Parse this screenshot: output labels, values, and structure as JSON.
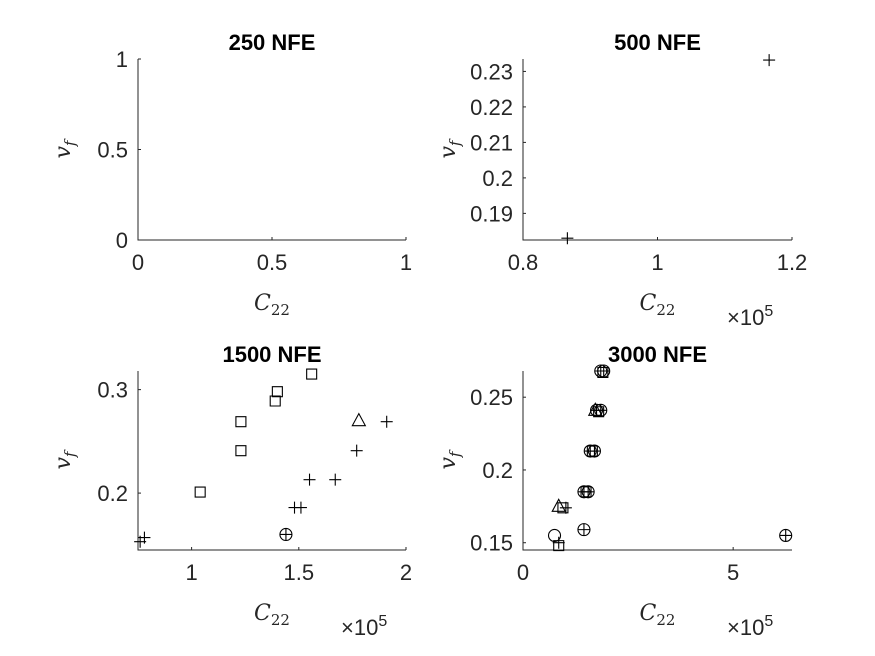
{
  "chart_data": [
    {
      "type": "scatter",
      "title": "250 NFE",
      "xlabel": "C22",
      "ylabel": "vf",
      "xlim": [
        0,
        1
      ],
      "ylim": [
        0,
        1
      ],
      "xticks": [
        "0",
        "0.5",
        "1"
      ],
      "yticks": [
        "0",
        "0.5",
        "1"
      ],
      "x_multiplier": "",
      "series": [
        {
          "marker": "plus",
          "points": []
        }
      ]
    },
    {
      "type": "scatter",
      "title": "500 NFE",
      "xlabel": "C22",
      "ylabel": "vf",
      "xlim": [
        0.8,
        1.2
      ],
      "ylim": [
        0.1825,
        0.2335
      ],
      "xticks": [
        "0.8",
        "1",
        "1.2"
      ],
      "yticks": [
        "0.19",
        "0.2",
        "0.21",
        "0.22",
        "0.23"
      ],
      "x_multiplier": "×10",
      "x_exponent": "5",
      "series": [
        {
          "marker": "plus",
          "points": [
            [
              0.866,
              0.183
            ],
            [
              1.166,
              0.2332
            ]
          ]
        }
      ]
    },
    {
      "type": "scatter",
      "title": "1500 NFE",
      "xlabel": "C22",
      "ylabel": "vf",
      "xlim": [
        0.75,
        2.0
      ],
      "ylim": [
        0.145,
        0.318
      ],
      "xticks": [
        "1",
        "1.5",
        "2"
      ],
      "yticks": [
        "0.2",
        "0.3"
      ],
      "x_multiplier": "×10",
      "x_exponent": "5",
      "series": [
        {
          "marker": "square",
          "points": [
            [
              1.04,
              0.201
            ],
            [
              1.23,
              0.241
            ],
            [
              1.23,
              0.269
            ],
            [
              1.39,
              0.289
            ],
            [
              1.4,
              0.298
            ],
            [
              1.56,
              0.315
            ]
          ]
        },
        {
          "marker": "plus",
          "points": [
            [
              0.76,
              0.153
            ],
            [
              0.78,
              0.157
            ],
            [
              1.48,
              0.186
            ],
            [
              1.51,
              0.186
            ],
            [
              1.55,
              0.213
            ],
            [
              1.67,
              0.213
            ],
            [
              1.77,
              0.241
            ],
            [
              1.91,
              0.269
            ]
          ]
        },
        {
          "marker": "triangle",
          "points": [
            [
              1.78,
              0.27
            ]
          ]
        },
        {
          "marker": "circle-plus",
          "points": [
            [
              1.44,
              0.16
            ]
          ]
        }
      ]
    },
    {
      "type": "scatter",
      "title": "3000 NFE",
      "xlabel": "C22",
      "ylabel": "vf",
      "xlim": [
        0,
        6.4
      ],
      "ylim": [
        0.145,
        0.268
      ],
      "xticks": [
        "0",
        "5"
      ],
      "yticks": [
        "0.15",
        "0.2",
        "0.25"
      ],
      "x_multiplier": "×10",
      "x_exponent": "5",
      "series": [
        {
          "marker": "circle",
          "points": [
            [
              0.75,
              0.155
            ]
          ]
        },
        {
          "marker": "square",
          "points": [
            [
              0.85,
              0.148
            ],
            [
              0.95,
              0.174
            ],
            [
              1.5,
              0.185
            ],
            [
              1.65,
              0.213
            ],
            [
              1.8,
              0.24
            ],
            [
              1.9,
              0.267
            ]
          ]
        },
        {
          "marker": "triangle",
          "points": [
            [
              0.85,
              0.175
            ],
            [
              1.72,
              0.241
            ]
          ]
        },
        {
          "marker": "plus",
          "points": [
            [
              0.85,
              0.15
            ],
            [
              1.02,
              0.174
            ]
          ]
        },
        {
          "marker": "circle-plus",
          "points": [
            [
              1.45,
              0.185
            ],
            [
              1.55,
              0.185
            ],
            [
              1.6,
              0.213
            ],
            [
              1.7,
              0.213
            ],
            [
              1.75,
              0.241
            ],
            [
              1.85,
              0.241
            ],
            [
              1.85,
              0.268
            ],
            [
              1.92,
              0.268
            ],
            [
              1.45,
              0.159
            ],
            [
              6.25,
              0.155
            ]
          ]
        }
      ]
    }
  ]
}
